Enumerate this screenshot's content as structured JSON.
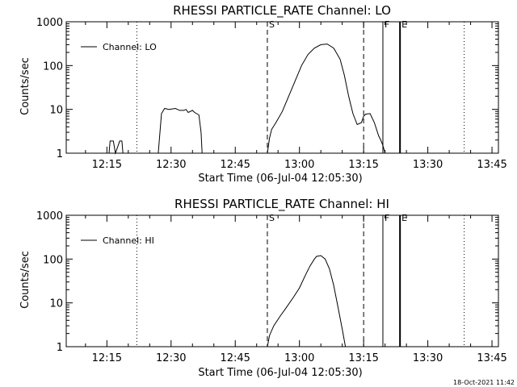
{
  "footer": {
    "timestamp": "18-Oct-2021 11:42"
  },
  "chart_data": [
    {
      "type": "line",
      "title": "RHESSI PARTICLE_RATE Channel: LO",
      "xlabel": "Start Time (06-Jul-04 12:05:30)",
      "ylabel": "Counts/sec",
      "y_scale": "log",
      "ylim": [
        1,
        1000
      ],
      "y_ticks": [
        1,
        10,
        100,
        1000
      ],
      "xlim": [
        "12:05:30",
        "13:46:30"
      ],
      "x_ticks": [
        "12:15",
        "12:30",
        "12:45",
        "13:00",
        "13:15",
        "13:30",
        "13:45"
      ],
      "legend": {
        "position": "top-left",
        "entries": [
          "Channel: LO"
        ]
      },
      "markers": [
        {
          "time": "12:22:00",
          "style": "dotted",
          "label": ""
        },
        {
          "time": "12:52:30",
          "style": "dashed",
          "label": "S"
        },
        {
          "time": "13:15:00",
          "style": "dashed",
          "label": ""
        },
        {
          "time": "13:19:30",
          "style": "solid",
          "label": "F"
        },
        {
          "time": "13:23:30",
          "style": "solid",
          "label": "E"
        },
        {
          "time": "13:38:30",
          "style": "dotted",
          "label": ""
        }
      ],
      "series": [
        {
          "name": "Channel: LO",
          "segments": [
            {
              "t": [
                "12:15:30",
                "12:15:45",
                "12:16:30",
                "12:17:00",
                "12:18:00",
                "12:18:30",
                "12:18:45"
              ],
              "y": [
                1,
                1.9,
                1.9,
                1,
                1.9,
                1.9,
                1
              ]
            },
            {
              "t": [
                "12:27:00",
                "12:27:45",
                "12:28:30",
                "12:29:30",
                "12:31:00",
                "12:32:00",
                "12:33:00",
                "12:33:30",
                "12:34:00",
                "12:35:00",
                "12:35:30",
                "12:36:30",
                "12:37:00",
                "12:37:15"
              ],
              "y": [
                1,
                8,
                10.5,
                10,
                10.5,
                9.5,
                9.5,
                10,
                8.5,
                9.5,
                8.5,
                7.5,
                3,
                1
              ]
            },
            {
              "t": [
                "12:52:30",
                "12:53:00",
                "12:53:30",
                "12:54:30",
                "12:56:00",
                "12:57:30",
                "12:59:00",
                "13:00:30",
                "13:02:00",
                "13:03:30",
                "13:05:00",
                "13:06:30",
                "13:08:00",
                "13:09:30",
                "13:10:30",
                "13:11:30",
                "13:12:30",
                "13:13:30",
                "13:14:30",
                "13:15:00",
                "13:15:30",
                "13:16:30",
                "13:17:30",
                "13:18:30",
                "13:19:00",
                "13:19:30",
                "13:20:00"
              ],
              "y": [
                1,
                2.2,
                3.5,
                5,
                9,
                20,
                45,
                100,
                180,
                250,
                300,
                310,
                250,
                140,
                60,
                20,
                8,
                4.5,
                5,
                7,
                7.8,
                8,
                5,
                2.5,
                2,
                1.5,
                1
              ]
            }
          ]
        }
      ]
    },
    {
      "type": "line",
      "title": "RHESSI PARTICLE_RATE Channel: HI",
      "xlabel": "Start Time (06-Jul-04 12:05:30)",
      "ylabel": "Counts/sec",
      "y_scale": "log",
      "ylim": [
        1,
        1000
      ],
      "y_ticks": [
        1,
        10,
        100,
        1000
      ],
      "xlim": [
        "12:05:30",
        "13:46:30"
      ],
      "x_ticks": [
        "12:15",
        "12:30",
        "12:45",
        "13:00",
        "13:15",
        "13:30",
        "13:45"
      ],
      "legend": {
        "position": "top-left",
        "entries": [
          "Channel: HI"
        ]
      },
      "markers": [
        {
          "time": "12:22:00",
          "style": "dotted",
          "label": ""
        },
        {
          "time": "12:52:30",
          "style": "dashed",
          "label": "S"
        },
        {
          "time": "13:15:00",
          "style": "dashed",
          "label": ""
        },
        {
          "time": "13:19:30",
          "style": "solid",
          "label": "F"
        },
        {
          "time": "13:23:30",
          "style": "solid",
          "label": "E"
        },
        {
          "time": "13:38:30",
          "style": "dotted",
          "label": ""
        }
      ],
      "series": [
        {
          "name": "Channel: HI",
          "segments": [
            {
              "t": [
                "12:52:30",
                "12:53:00",
                "12:54:00",
                "12:55:30",
                "12:57:00",
                "12:58:30",
                "13:00:00",
                "13:01:30",
                "13:02:30",
                "13:03:30",
                "13:04:00",
                "13:05:00",
                "13:06:00",
                "13:07:00",
                "13:08:00",
                "13:09:00",
                "13:10:00",
                "13:10:45"
              ],
              "y": [
                1,
                1.8,
                3,
                5,
                8,
                13,
                22,
                45,
                70,
                100,
                115,
                120,
                100,
                60,
                25,
                8,
                2.5,
                1
              ]
            }
          ]
        }
      ]
    }
  ]
}
